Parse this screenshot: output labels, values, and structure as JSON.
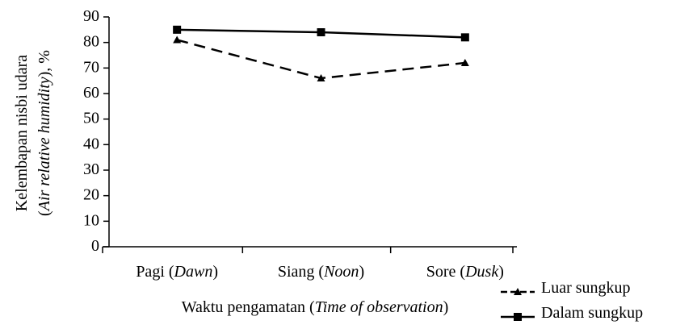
{
  "chart_data": {
    "type": "line",
    "y_label": [
      "Kelembapan nisbi udara",
      "(Air relative humidity), %"
    ],
    "x_label": "Waktu pengamatan (Time of observation)",
    "categories": [
      "Pagi (Dawn)",
      "Siang (Noon)",
      "Sore (Dusk)"
    ],
    "series": [
      {
        "name": "Luar sungkup",
        "color": "#000000",
        "line_style": "dashed",
        "marker": "triangle",
        "values": [
          81,
          66,
          72
        ]
      },
      {
        "name": "Dalam sungkup",
        "color": "#000000",
        "line_style": "solid",
        "marker": "square",
        "values": [
          85,
          84,
          82
        ]
      }
    ],
    "ylim": [
      0,
      90
    ],
    "yticks": [
      0,
      10,
      20,
      30,
      40,
      50,
      60,
      70,
      80,
      90
    ],
    "grid": false,
    "legend": "bottom-right"
  }
}
